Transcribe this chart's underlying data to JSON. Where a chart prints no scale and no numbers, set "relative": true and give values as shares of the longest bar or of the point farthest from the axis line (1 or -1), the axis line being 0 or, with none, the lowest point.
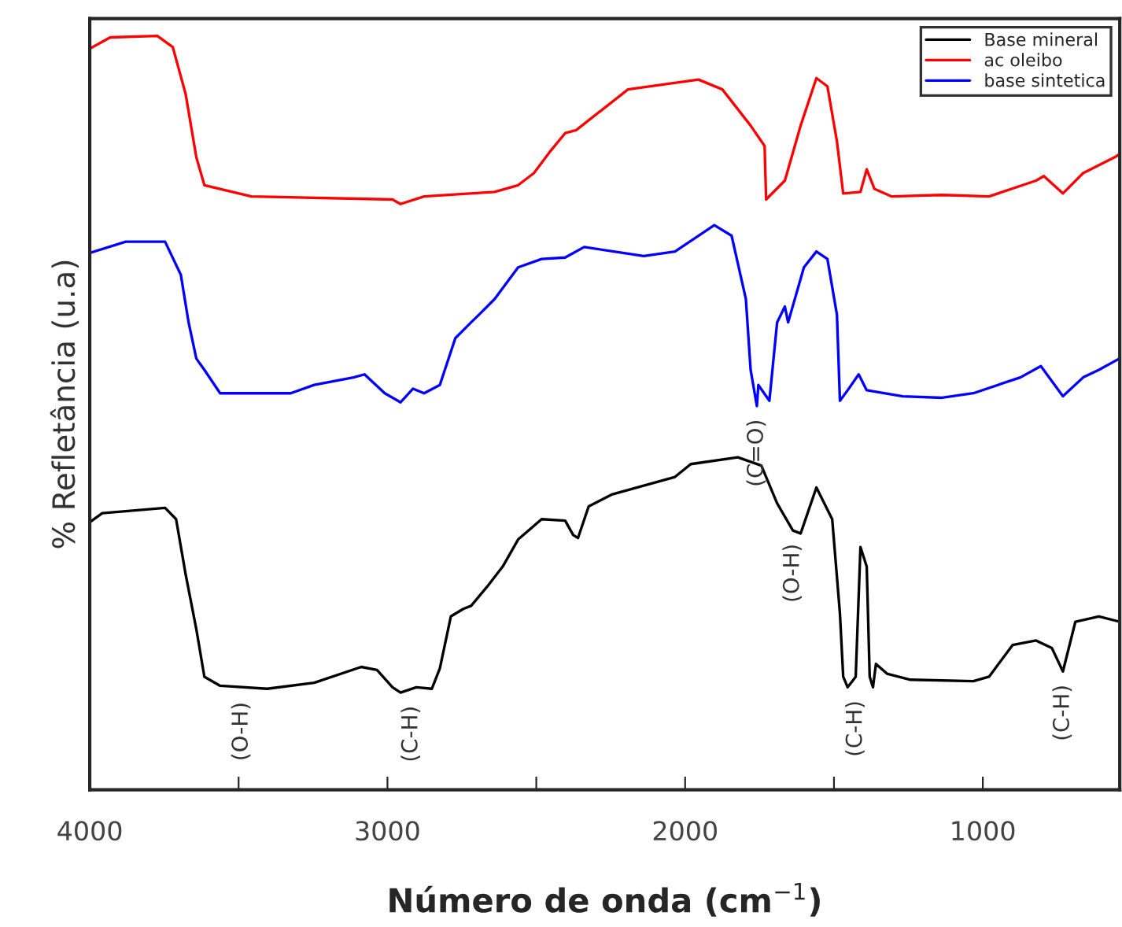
{
  "chart_data": {
    "type": "line",
    "relative": true,
    "xlabel": "Número de onda (cm$^{−1}$)",
    "ylabel": "% Refletância (u.a)",
    "xlim": [
      4000,
      540
    ],
    "xticks": [
      4000,
      {
        "value": 3500,
        "label": null
      },
      3000,
      {
        "value": 2500,
        "label": null
      },
      2000,
      {
        "value": 1500,
        "label": null
      },
      1000
    ],
    "legend": "top right",
    "grid": false,
    "marker": "none",
    "line_style": "solid",
    "series": [
      {
        "name": "Base mineral",
        "color": "#000000",
        "x": [
          4000,
          3958,
          3747,
          3710,
          3678,
          3642,
          3615,
          3562,
          3404,
          3246,
          3088,
          3035,
          2983,
          2956,
          2903,
          2851,
          2824,
          2787,
          2745,
          2719,
          2666,
          2613,
          2561,
          2482,
          2403,
          2376,
          2360,
          2324,
          2244,
          2034,
          1981,
          1823,
          1744,
          1691,
          1638,
          1612,
          1559,
          1506,
          1480,
          1469,
          1454,
          1427,
          1411,
          1390,
          1380,
          1369,
          1359,
          1322,
          1243,
          1032,
          979,
          900,
          821,
          768,
          731,
          689,
          610,
          541
        ],
        "values": [
          0.355,
          0.367,
          0.374,
          0.359,
          0.286,
          0.213,
          0.15,
          0.138,
          0.134,
          0.142,
          0.163,
          0.159,
          0.136,
          0.129,
          0.136,
          0.134,
          0.161,
          0.23,
          0.24,
          0.244,
          0.269,
          0.296,
          0.332,
          0.359,
          0.357,
          0.338,
          0.334,
          0.376,
          0.392,
          0.415,
          0.432,
          0.441,
          0.43,
          0.38,
          0.344,
          0.34,
          0.401,
          0.359,
          0.234,
          0.15,
          0.136,
          0.15,
          0.322,
          0.296,
          0.15,
          0.136,
          0.167,
          0.154,
          0.146,
          0.144,
          0.15,
          0.192,
          0.198,
          0.188,
          0.157,
          0.223,
          0.23,
          0.223
        ]
      },
      {
        "name": "ac oleibo",
        "color": "#ff0000",
        "x": [
          4000,
          3931,
          3773,
          3721,
          3678,
          3642,
          3615,
          3457,
          2983,
          2956,
          2877,
          2640,
          2561,
          2508,
          2455,
          2403,
          2366,
          2192,
          1955,
          1875,
          1780,
          1733,
          1728,
          1665,
          1612,
          1559,
          1522,
          1490,
          1469,
          1411,
          1390,
          1364,
          1306,
          1137,
          979,
          821,
          795,
          731,
          663,
          557,
          541
        ],
        "values": [
          0.983,
          0.998,
          1.0,
          0.985,
          0.923,
          0.839,
          0.802,
          0.787,
          0.783,
          0.777,
          0.787,
          0.793,
          0.802,
          0.818,
          0.846,
          0.871,
          0.875,
          0.929,
          0.942,
          0.929,
          0.881,
          0.854,
          0.783,
          0.808,
          0.881,
          0.944,
          0.933,
          0.86,
          0.791,
          0.793,
          0.823,
          0.797,
          0.787,
          0.789,
          0.787,
          0.808,
          0.814,
          0.791,
          0.818,
          0.839,
          0.843
        ]
      },
      {
        "name": "base sintetica",
        "color": "#0000ff",
        "x": [
          4000,
          3879,
          3747,
          3694,
          3668,
          3642,
          3615,
          3562,
          3325,
          3246,
          3114,
          3077,
          3009,
          2956,
          2914,
          2877,
          2824,
          2772,
          2719,
          2693,
          2640,
          2561,
          2482,
          2403,
          2339,
          2139,
          2034,
          1902,
          1844,
          1796,
          1780,
          1759,
          1754,
          1717,
          1691,
          1665,
          1654,
          1601,
          1559,
          1522,
          1490,
          1480,
          1454,
          1417,
          1390,
          1269,
          1137,
          1032,
          874,
          805,
          731,
          663,
          610,
          541
        ],
        "values": [
          0.712,
          0.727,
          0.727,
          0.683,
          0.62,
          0.572,
          0.557,
          0.526,
          0.526,
          0.537,
          0.547,
          0.551,
          0.526,
          0.514,
          0.532,
          0.526,
          0.537,
          0.599,
          0.62,
          0.63,
          0.651,
          0.693,
          0.704,
          0.706,
          0.72,
          0.708,
          0.714,
          0.749,
          0.735,
          0.651,
          0.557,
          0.509,
          0.537,
          0.516,
          0.62,
          0.641,
          0.62,
          0.693,
          0.714,
          0.704,
          0.63,
          0.516,
          0.53,
          0.551,
          0.53,
          0.522,
          0.52,
          0.526,
          0.547,
          0.562,
          0.522,
          0.547,
          0.557,
          0.572
        ]
      }
    ],
    "annotations": [
      {
        "text": "(O-H)",
        "x": 3490,
        "y": 0.134
      },
      {
        "text": "(C-H)",
        "x": 2920,
        "y": 0.129
      },
      {
        "text": "(C=O)",
        "x": 1759,
        "y": 0.509
      },
      {
        "text": "(O-H)",
        "x": 1638,
        "y": 0.344
      },
      {
        "text": "(C-H)",
        "x": 1427,
        "y": 0.136
      },
      {
        "text": "(C-H)",
        "x": 731,
        "y": 0.157
      }
    ]
  }
}
